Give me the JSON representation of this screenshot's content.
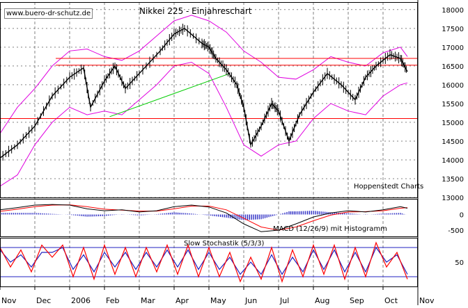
{
  "header": {
    "watermark": "www.buero-dr-schutz.de",
    "title": "Nikkei 225 - Einjahreschart",
    "credit": "Hoppenstedt Charts"
  },
  "colors": {
    "price": "#000000",
    "bollinger": "#e000e0",
    "resistance": "#ff0000",
    "trendline": "#00cc00",
    "macd_line": "#000000",
    "signal_line": "#ff0000",
    "histogram": "#2020c0",
    "stoch_k": "#ff0000",
    "stoch_d": "#2020c0",
    "stoch_levels": "#2020c0",
    "grid": "#808080"
  },
  "chart_data": {
    "type": "line",
    "price_panel": {
      "ylim": [
        13000,
        18200
      ],
      "yticks": [
        "13000",
        "13500",
        "14000",
        "14500",
        "15000",
        "15500",
        "16000",
        "16500",
        "17000",
        "17500",
        "18000"
      ],
      "x_months": [
        "Nov",
        "Dec",
        "2006",
        "Feb",
        "Mar",
        "Apr",
        "May",
        "Jun",
        "Jul",
        "Aug",
        "Sep",
        "Oct",
        "Nov"
      ],
      "close": [
        {
          "x": 0,
          "y": 14050
        },
        {
          "x": 0.5,
          "y": 14400
        },
        {
          "x": 1,
          "y": 14900
        },
        {
          "x": 1.5,
          "y": 15700
        },
        {
          "x": 2,
          "y": 16200
        },
        {
          "x": 2.4,
          "y": 16450
        },
        {
          "x": 2.6,
          "y": 15400
        },
        {
          "x": 3,
          "y": 16100
        },
        {
          "x": 3.3,
          "y": 16500
        },
        {
          "x": 3.6,
          "y": 15900
        },
        {
          "x": 4,
          "y": 16300
        },
        {
          "x": 4.6,
          "y": 16900
        },
        {
          "x": 5,
          "y": 17350
        },
        {
          "x": 5.3,
          "y": 17500
        },
        {
          "x": 5.8,
          "y": 17100
        },
        {
          "x": 6,
          "y": 17000
        },
        {
          "x": 6.2,
          "y": 16700
        },
        {
          "x": 6.5,
          "y": 16400
        },
        {
          "x": 6.8,
          "y": 16000
        },
        {
          "x": 7,
          "y": 15400
        },
        {
          "x": 7.2,
          "y": 14400
        },
        {
          "x": 7.5,
          "y": 14900
        },
        {
          "x": 7.8,
          "y": 15500
        },
        {
          "x": 8,
          "y": 15300
        },
        {
          "x": 8.3,
          "y": 14500
        },
        {
          "x": 8.6,
          "y": 15200
        },
        {
          "x": 9,
          "y": 15800
        },
        {
          "x": 9.4,
          "y": 16300
        },
        {
          "x": 9.8,
          "y": 16000
        },
        {
          "x": 10.2,
          "y": 15600
        },
        {
          "x": 10.5,
          "y": 16200
        },
        {
          "x": 10.8,
          "y": 16500
        },
        {
          "x": 11.2,
          "y": 16800
        },
        {
          "x": 11.5,
          "y": 16700
        },
        {
          "x": 11.7,
          "y": 16350
        }
      ],
      "bollinger_upper": [
        {
          "x": 0,
          "y": 14700
        },
        {
          "x": 0.5,
          "y": 15400
        },
        {
          "x": 1,
          "y": 15900
        },
        {
          "x": 1.5,
          "y": 16500
        },
        {
          "x": 2,
          "y": 16900
        },
        {
          "x": 2.5,
          "y": 16950
        },
        {
          "x": 3,
          "y": 16750
        },
        {
          "x": 3.5,
          "y": 16650
        },
        {
          "x": 4,
          "y": 16900
        },
        {
          "x": 4.5,
          "y": 17300
        },
        {
          "x": 5,
          "y": 17700
        },
        {
          "x": 5.5,
          "y": 17850
        },
        {
          "x": 6,
          "y": 17700
        },
        {
          "x": 6.5,
          "y": 17400
        },
        {
          "x": 7,
          "y": 16900
        },
        {
          "x": 7.5,
          "y": 16600
        },
        {
          "x": 8,
          "y": 16200
        },
        {
          "x": 8.5,
          "y": 16150
        },
        {
          "x": 9,
          "y": 16400
        },
        {
          "x": 9.5,
          "y": 16750
        },
        {
          "x": 10,
          "y": 16600
        },
        {
          "x": 10.5,
          "y": 16500
        },
        {
          "x": 11,
          "y": 16850
        },
        {
          "x": 11.5,
          "y": 17000
        },
        {
          "x": 11.7,
          "y": 16750
        }
      ],
      "bollinger_lower": [
        {
          "x": 0,
          "y": 13300
        },
        {
          "x": 0.5,
          "y": 13600
        },
        {
          "x": 1,
          "y": 14400
        },
        {
          "x": 1.5,
          "y": 15000
        },
        {
          "x": 2,
          "y": 15400
        },
        {
          "x": 2.5,
          "y": 15200
        },
        {
          "x": 3,
          "y": 15300
        },
        {
          "x": 3.5,
          "y": 15200
        },
        {
          "x": 4,
          "y": 15600
        },
        {
          "x": 4.5,
          "y": 16000
        },
        {
          "x": 5,
          "y": 16500
        },
        {
          "x": 5.5,
          "y": 16600
        },
        {
          "x": 6,
          "y": 16300
        },
        {
          "x": 6.5,
          "y": 15400
        },
        {
          "x": 7,
          "y": 14400
        },
        {
          "x": 7.5,
          "y": 14100
        },
        {
          "x": 8,
          "y": 14400
        },
        {
          "x": 8.5,
          "y": 14500
        },
        {
          "x": 9,
          "y": 15100
        },
        {
          "x": 9.5,
          "y": 15500
        },
        {
          "x": 10,
          "y": 15300
        },
        {
          "x": 10.5,
          "y": 15200
        },
        {
          "x": 11,
          "y": 15700
        },
        {
          "x": 11.5,
          "y": 16000
        },
        {
          "x": 11.7,
          "y": 16050
        }
      ],
      "resistance_lines": [
        16700,
        16520,
        15100
      ],
      "trendline": [
        {
          "x": 3.15,
          "y": 15150
        },
        {
          "x": 6.6,
          "y": 16300
        }
      ]
    },
    "macd_panel": {
      "label": "MACD (12/26/9) mit Histogramm",
      "ylim": [
        -700,
        500
      ],
      "yticks": [
        "0",
        "-500"
      ],
      "macd": [
        {
          "x": 0,
          "y": 150
        },
        {
          "x": 0.5,
          "y": 220
        },
        {
          "x": 1,
          "y": 300
        },
        {
          "x": 1.5,
          "y": 320
        },
        {
          "x": 2,
          "y": 300
        },
        {
          "x": 2.5,
          "y": 180
        },
        {
          "x": 3,
          "y": 120
        },
        {
          "x": 3.5,
          "y": 150
        },
        {
          "x": 4,
          "y": 80
        },
        {
          "x": 4.5,
          "y": 120
        },
        {
          "x": 5,
          "y": 250
        },
        {
          "x": 5.5,
          "y": 300
        },
        {
          "x": 6,
          "y": 240
        },
        {
          "x": 6.5,
          "y": 50
        },
        {
          "x": 7,
          "y": -300
        },
        {
          "x": 7.5,
          "y": -550
        },
        {
          "x": 8,
          "y": -500
        },
        {
          "x": 8.5,
          "y": -300
        },
        {
          "x": 9,
          "y": -80
        },
        {
          "x": 9.5,
          "y": 50
        },
        {
          "x": 10,
          "y": 120
        },
        {
          "x": 10.5,
          "y": 80
        },
        {
          "x": 11,
          "y": 150
        },
        {
          "x": 11.5,
          "y": 250
        },
        {
          "x": 11.7,
          "y": 200
        }
      ],
      "signal": [
        {
          "x": 0,
          "y": 100
        },
        {
          "x": 0.5,
          "y": 170
        },
        {
          "x": 1,
          "y": 250
        },
        {
          "x": 1.5,
          "y": 300
        },
        {
          "x": 2,
          "y": 310
        },
        {
          "x": 2.5,
          "y": 250
        },
        {
          "x": 3,
          "y": 170
        },
        {
          "x": 3.5,
          "y": 140
        },
        {
          "x": 4,
          "y": 110
        },
        {
          "x": 4.5,
          "y": 110
        },
        {
          "x": 5,
          "y": 180
        },
        {
          "x": 5.5,
          "y": 270
        },
        {
          "x": 6,
          "y": 270
        },
        {
          "x": 6.5,
          "y": 150
        },
        {
          "x": 7,
          "y": -120
        },
        {
          "x": 7.5,
          "y": -400
        },
        {
          "x": 8,
          "y": -500
        },
        {
          "x": 8.5,
          "y": -400
        },
        {
          "x": 9,
          "y": -200
        },
        {
          "x": 9.5,
          "y": -20
        },
        {
          "x": 10,
          "y": 80
        },
        {
          "x": 10.5,
          "y": 90
        },
        {
          "x": 11,
          "y": 120
        },
        {
          "x": 11.5,
          "y": 200
        },
        {
          "x": 11.7,
          "y": 220
        }
      ],
      "histogram": [
        {
          "x": 0,
          "y": 50
        },
        {
          "x": 0.5,
          "y": 50
        },
        {
          "x": 1,
          "y": 50
        },
        {
          "x": 1.5,
          "y": 20
        },
        {
          "x": 2,
          "y": -10
        },
        {
          "x": 2.5,
          "y": -70
        },
        {
          "x": 3,
          "y": -50
        },
        {
          "x": 3.5,
          "y": 10
        },
        {
          "x": 4,
          "y": -30
        },
        {
          "x": 4.5,
          "y": 10
        },
        {
          "x": 5,
          "y": 70
        },
        {
          "x": 5.5,
          "y": 30
        },
        {
          "x": 6,
          "y": -30
        },
        {
          "x": 6.5,
          "y": -100
        },
        {
          "x": 7,
          "y": -180
        },
        {
          "x": 7.5,
          "y": -150
        },
        {
          "x": 8,
          "y": 0
        },
        {
          "x": 8.3,
          "y": 100
        },
        {
          "x": 8.5,
          "y": 100
        },
        {
          "x": 9,
          "y": 120
        },
        {
          "x": 9.5,
          "y": 70
        },
        {
          "x": 10,
          "y": 40
        },
        {
          "x": 10.5,
          "y": -10
        },
        {
          "x": 11,
          "y": 30
        },
        {
          "x": 11.5,
          "y": 50
        },
        {
          "x": 11.7,
          "y": -20
        }
      ]
    },
    "stoch_panel": {
      "label": "Slow Stochastik (5/3/3)",
      "ylim": [
        0,
        100
      ],
      "yticks": [
        "50"
      ],
      "levels": [
        80,
        20
      ],
      "k": [
        {
          "x": 0,
          "y": 80
        },
        {
          "x": 0.3,
          "y": 40
        },
        {
          "x": 0.6,
          "y": 75
        },
        {
          "x": 0.9,
          "y": 30
        },
        {
          "x": 1.2,
          "y": 85
        },
        {
          "x": 1.5,
          "y": 60
        },
        {
          "x": 1.8,
          "y": 85
        },
        {
          "x": 2.1,
          "y": 20
        },
        {
          "x": 2.4,
          "y": 80
        },
        {
          "x": 2.7,
          "y": 15
        },
        {
          "x": 3,
          "y": 85
        },
        {
          "x": 3.3,
          "y": 25
        },
        {
          "x": 3.6,
          "y": 80
        },
        {
          "x": 3.9,
          "y": 20
        },
        {
          "x": 4.2,
          "y": 80
        },
        {
          "x": 4.5,
          "y": 30
        },
        {
          "x": 4.8,
          "y": 85
        },
        {
          "x": 5.1,
          "y": 25
        },
        {
          "x": 5.4,
          "y": 85
        },
        {
          "x": 5.7,
          "y": 20
        },
        {
          "x": 6,
          "y": 80
        },
        {
          "x": 6.3,
          "y": 20
        },
        {
          "x": 6.6,
          "y": 70
        },
        {
          "x": 6.9,
          "y": 10
        },
        {
          "x": 7.2,
          "y": 60
        },
        {
          "x": 7.5,
          "y": 15
        },
        {
          "x": 7.8,
          "y": 80
        },
        {
          "x": 8.1,
          "y": 10
        },
        {
          "x": 8.4,
          "y": 75
        },
        {
          "x": 8.7,
          "y": 20
        },
        {
          "x": 9,
          "y": 85
        },
        {
          "x": 9.3,
          "y": 25
        },
        {
          "x": 9.6,
          "y": 85
        },
        {
          "x": 9.9,
          "y": 15
        },
        {
          "x": 10.2,
          "y": 80
        },
        {
          "x": 10.5,
          "y": 20
        },
        {
          "x": 10.8,
          "y": 90
        },
        {
          "x": 11.1,
          "y": 40
        },
        {
          "x": 11.4,
          "y": 70
        },
        {
          "x": 11.7,
          "y": 15
        }
      ],
      "d": [
        {
          "x": 0,
          "y": 75
        },
        {
          "x": 0.3,
          "y": 50
        },
        {
          "x": 0.6,
          "y": 65
        },
        {
          "x": 0.9,
          "y": 40
        },
        {
          "x": 1.2,
          "y": 70
        },
        {
          "x": 1.5,
          "y": 70
        },
        {
          "x": 1.8,
          "y": 80
        },
        {
          "x": 2.1,
          "y": 35
        },
        {
          "x": 2.4,
          "y": 65
        },
        {
          "x": 2.7,
          "y": 30
        },
        {
          "x": 3,
          "y": 70
        },
        {
          "x": 3.3,
          "y": 40
        },
        {
          "x": 3.6,
          "y": 70
        },
        {
          "x": 3.9,
          "y": 35
        },
        {
          "x": 4.2,
          "y": 70
        },
        {
          "x": 4.5,
          "y": 40
        },
        {
          "x": 4.8,
          "y": 75
        },
        {
          "x": 5.1,
          "y": 40
        },
        {
          "x": 5.4,
          "y": 75
        },
        {
          "x": 5.7,
          "y": 35
        },
        {
          "x": 6,
          "y": 70
        },
        {
          "x": 6.3,
          "y": 35
        },
        {
          "x": 6.6,
          "y": 60
        },
        {
          "x": 6.9,
          "y": 25
        },
        {
          "x": 7.2,
          "y": 50
        },
        {
          "x": 7.5,
          "y": 25
        },
        {
          "x": 7.8,
          "y": 65
        },
        {
          "x": 8.1,
          "y": 25
        },
        {
          "x": 8.4,
          "y": 60
        },
        {
          "x": 8.7,
          "y": 30
        },
        {
          "x": 9,
          "y": 75
        },
        {
          "x": 9.3,
          "y": 35
        },
        {
          "x": 9.6,
          "y": 75
        },
        {
          "x": 9.9,
          "y": 30
        },
        {
          "x": 10.2,
          "y": 70
        },
        {
          "x": 10.5,
          "y": 30
        },
        {
          "x": 10.8,
          "y": 80
        },
        {
          "x": 11.1,
          "y": 50
        },
        {
          "x": 11.4,
          "y": 65
        },
        {
          "x": 11.7,
          "y": 25
        }
      ]
    }
  }
}
